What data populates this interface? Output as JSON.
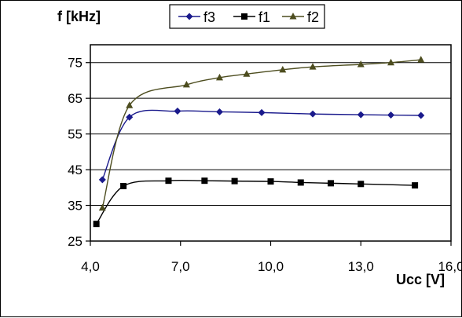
{
  "chart_data": {
    "type": "line",
    "ylabel": "f [kHz]",
    "xlabel": "Ucc [V]",
    "xlim": [
      4.0,
      16.0
    ],
    "ylim": [
      25,
      80
    ],
    "xticks": [
      4.0,
      7.0,
      10.0,
      13.0,
      16.0
    ],
    "xtick_labels": [
      "4,0",
      "7,0",
      "10,0",
      "13,0",
      "16,0"
    ],
    "yticks": [
      25,
      35,
      45,
      55,
      65,
      75
    ],
    "ytick_labels": [
      "25",
      "35",
      "45",
      "55",
      "65",
      "75"
    ],
    "grid": "horizontal",
    "legend": "top-center",
    "series": [
      {
        "name": "f3",
        "color": "#1a1a8c",
        "marker": "diamond",
        "points": [
          [
            4.4,
            42.2
          ],
          [
            5.3,
            59.7
          ],
          [
            6.9,
            61.4
          ],
          [
            8.3,
            61.2
          ],
          [
            9.7,
            61.0
          ],
          [
            11.4,
            60.6
          ],
          [
            13.0,
            60.4
          ],
          [
            14.0,
            60.3
          ],
          [
            15.0,
            60.2
          ]
        ]
      },
      {
        "name": "f1",
        "color": "#000000",
        "marker": "square",
        "points": [
          [
            4.2,
            29.8
          ],
          [
            5.1,
            40.4
          ],
          [
            6.6,
            41.9
          ],
          [
            7.8,
            41.9
          ],
          [
            8.8,
            41.8
          ],
          [
            10.0,
            41.7
          ],
          [
            11.0,
            41.4
          ],
          [
            12.0,
            41.2
          ],
          [
            13.0,
            41.0
          ],
          [
            14.8,
            40.6
          ]
        ]
      },
      {
        "name": "f2",
        "color": "#4d4d1f",
        "marker": "triangle",
        "points": [
          [
            4.4,
            34.3
          ],
          [
            5.3,
            63.0
          ],
          [
            7.2,
            68.8
          ],
          [
            8.3,
            70.8
          ],
          [
            9.2,
            71.8
          ],
          [
            10.4,
            73.0
          ],
          [
            11.4,
            73.8
          ],
          [
            13.0,
            74.5
          ],
          [
            14.0,
            75.0
          ],
          [
            15.0,
            75.8
          ]
        ]
      }
    ]
  }
}
